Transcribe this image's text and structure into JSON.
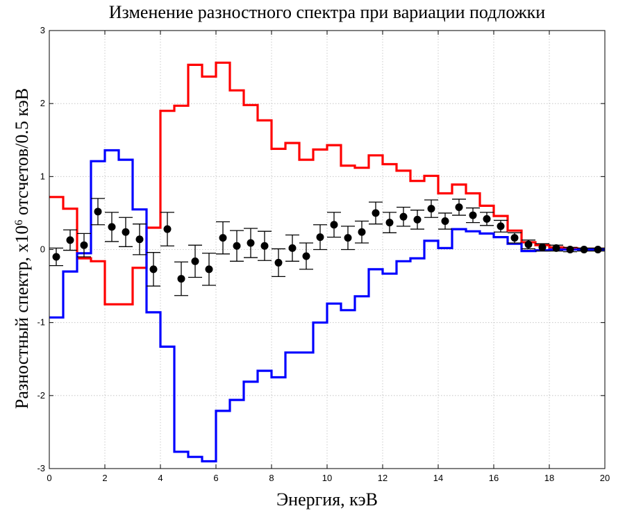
{
  "chart_data": {
    "type": "line",
    "title": "Изменение разностного спектра при вариации подложки",
    "xlabel": "Энергия, кэВ",
    "ylabel_main": "Разностный спектр, x10",
    "ylabel_exp": "6",
    "ylabel_tail": " отсчетов/0.5 кэВ",
    "xlim": [
      0,
      20
    ],
    "ylim": [
      -3,
      3
    ],
    "xticks": [
      "0",
      "2",
      "4",
      "6",
      "8",
      "10",
      "12",
      "14",
      "16",
      "18",
      "20"
    ],
    "yticks": [
      "-3",
      "-2",
      "-1",
      "0",
      "1",
      "2",
      "3"
    ],
    "grid": true,
    "bin_width": 0.5,
    "series": [
      {
        "name": "red",
        "style": "step",
        "color": "#ff0000",
        "x": [
          0.25,
          0.75,
          1.25,
          1.75,
          2.25,
          2.75,
          3.25,
          3.75,
          4.25,
          4.75,
          5.25,
          5.75,
          6.25,
          6.75,
          7.25,
          7.75,
          8.25,
          8.75,
          9.25,
          9.75,
          10.25,
          10.75,
          11.25,
          11.75,
          12.25,
          12.75,
          13.25,
          13.75,
          14.25,
          14.75,
          15.25,
          15.75,
          16.25,
          16.75,
          17.25,
          17.75,
          18.25,
          18.75,
          19.25,
          19.75
        ],
        "values": [
          0.72,
          0.56,
          -0.12,
          -0.16,
          -0.75,
          -0.75,
          -0.25,
          0.3,
          1.9,
          1.97,
          2.53,
          2.37,
          2.56,
          2.18,
          1.98,
          1.77,
          1.38,
          1.46,
          1.23,
          1.37,
          1.43,
          1.15,
          1.12,
          1.29,
          1.17,
          1.08,
          0.94,
          1.01,
          0.77,
          0.89,
          0.77,
          0.6,
          0.46,
          0.26,
          0.1,
          0.06,
          0.03,
          0.02,
          0.01,
          0.01
        ]
      },
      {
        "name": "blue",
        "style": "step",
        "color": "#0000ff",
        "x": [
          0.25,
          0.75,
          1.25,
          1.75,
          2.25,
          2.75,
          3.25,
          3.75,
          4.25,
          4.75,
          5.25,
          5.75,
          6.25,
          6.75,
          7.25,
          7.75,
          8.25,
          8.75,
          9.25,
          9.75,
          10.25,
          10.75,
          11.25,
          11.75,
          12.25,
          12.75,
          13.25,
          13.75,
          14.25,
          14.75,
          15.25,
          15.75,
          16.25,
          16.75,
          17.25,
          17.75,
          18.25,
          18.75,
          19.25,
          19.75
        ],
        "values": [
          -0.93,
          -0.3,
          -0.05,
          1.21,
          1.36,
          1.23,
          0.55,
          -0.86,
          -1.33,
          -2.77,
          -2.84,
          -2.9,
          -2.21,
          -2.06,
          -1.81,
          -1.66,
          -1.75,
          -1.41,
          -1.41,
          -1.0,
          -0.74,
          -0.83,
          -0.64,
          -0.27,
          -0.33,
          -0.16,
          -0.12,
          0.12,
          0.02,
          0.28,
          0.25,
          0.22,
          0.17,
          0.08,
          -0.02,
          -0.01,
          0.0,
          0.0,
          0.0,
          0.0
        ]
      },
      {
        "name": "data",
        "style": "errorbar",
        "color": "#000000",
        "x": [
          0.25,
          0.75,
          1.25,
          1.75,
          2.25,
          2.75,
          3.25,
          3.75,
          4.25,
          4.75,
          5.25,
          5.75,
          6.25,
          6.75,
          7.25,
          7.75,
          8.25,
          8.75,
          9.25,
          9.75,
          10.25,
          10.75,
          11.25,
          11.75,
          12.25,
          12.75,
          13.25,
          13.75,
          14.25,
          14.75,
          15.25,
          15.75,
          16.25,
          16.75,
          17.25,
          17.75,
          18.25,
          18.75,
          19.25,
          19.75
        ],
        "values": [
          -0.1,
          0.13,
          0.06,
          0.52,
          0.31,
          0.24,
          0.14,
          -0.27,
          0.28,
          -0.4,
          -0.16,
          -0.27,
          0.16,
          0.05,
          0.09,
          0.05,
          -0.18,
          0.02,
          -0.09,
          0.17,
          0.34,
          0.16,
          0.24,
          0.5,
          0.37,
          0.45,
          0.41,
          0.56,
          0.39,
          0.58,
          0.47,
          0.42,
          0.32,
          0.16,
          0.07,
          0.03,
          0.02,
          0.0,
          0.0,
          0.0
        ],
        "errors": [
          0.12,
          0.14,
          0.16,
          0.18,
          0.2,
          0.2,
          0.21,
          0.23,
          0.23,
          0.23,
          0.22,
          0.22,
          0.22,
          0.21,
          0.2,
          0.2,
          0.19,
          0.18,
          0.18,
          0.17,
          0.17,
          0.16,
          0.15,
          0.15,
          0.14,
          0.13,
          0.13,
          0.12,
          0.11,
          0.11,
          0.1,
          0.09,
          0.08,
          0.07,
          0.06,
          0.05,
          0.04,
          0.03,
          0.02,
          0.02
        ]
      }
    ]
  }
}
